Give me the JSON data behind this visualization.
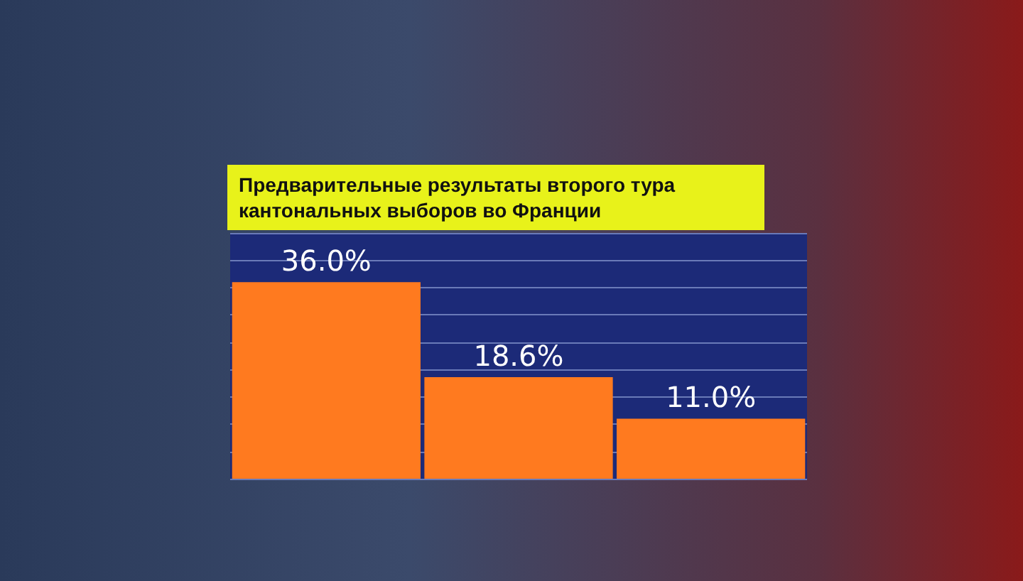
{
  "chart_data": {
    "type": "bar",
    "title": "Предварительные результаты второго тура кантональных выборов во Франции",
    "categories": [
      null,
      null,
      null
    ],
    "values": [
      36.0,
      18.6,
      11.0
    ],
    "color": "#ff7a1f",
    "value_labels": [
      "36.0%",
      "18.6%",
      "11.0%"
    ],
    "ylim": [
      0,
      45
    ],
    "yticks": [
      {
        "value": 0,
        "label": null
      },
      {
        "value": 5,
        "label": null
      },
      {
        "value": 10,
        "label": null
      },
      {
        "value": 15,
        "label": null
      },
      {
        "value": 20,
        "label": null
      },
      {
        "value": 25,
        "label": null
      },
      {
        "value": 30,
        "label": null
      },
      {
        "value": 35,
        "label": null
      },
      {
        "value": 40,
        "label": null
      },
      {
        "value": 45,
        "label": null
      }
    ],
    "grid": "y"
  }
}
